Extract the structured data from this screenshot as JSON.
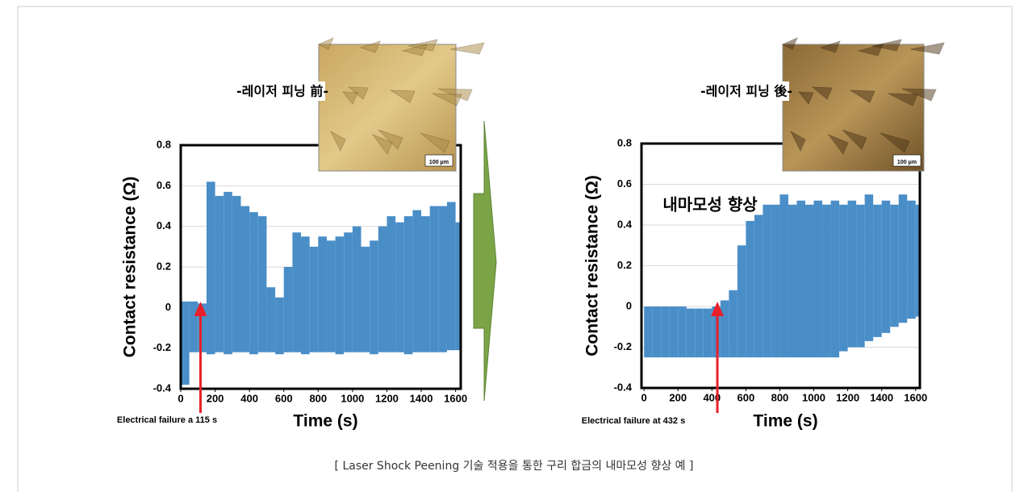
{
  "chart_data": [
    {
      "type": "range-area",
      "color": "#4a8ec8",
      "grid": true,
      "xlabel": "Time (s)",
      "ylabel": "Contact resistance (Ω)",
      "xlim": [
        0,
        1630
      ],
      "ylim": [
        -0.4,
        0.8
      ],
      "xticks": [
        0,
        200,
        400,
        600,
        800,
        1000,
        1200,
        1400,
        1600
      ],
      "yticks": [
        -0.4,
        -0.2,
        0,
        0.2,
        0.4,
        0.6,
        0.8
      ],
      "inset_label": "-레이저 피닝 前-",
      "inset_scale": "100 μm",
      "annotation": "Electrical failure a 115 s",
      "failure_time": 115,
      "x": [
        0,
        50,
        100,
        150,
        200,
        250,
        300,
        350,
        400,
        450,
        500,
        550,
        600,
        650,
        700,
        750,
        800,
        850,
        900,
        950,
        1000,
        1050,
        1100,
        1150,
        1200,
        1250,
        1300,
        1350,
        1400,
        1450,
        1500,
        1550,
        1600
      ],
      "high": [
        0.03,
        0.03,
        0.02,
        0.62,
        0.55,
        0.57,
        0.55,
        0.5,
        0.47,
        0.45,
        0.1,
        0.05,
        0.2,
        0.37,
        0.35,
        0.3,
        0.35,
        0.33,
        0.35,
        0.37,
        0.4,
        0.3,
        0.33,
        0.4,
        0.45,
        0.42,
        0.45,
        0.48,
        0.45,
        0.5,
        0.5,
        0.52,
        0.42
      ],
      "low": [
        -0.38,
        -0.22,
        -0.22,
        -0.23,
        -0.22,
        -0.23,
        -0.22,
        -0.22,
        -0.23,
        -0.22,
        -0.22,
        -0.23,
        -0.22,
        -0.22,
        -0.23,
        -0.22,
        -0.22,
        -0.22,
        -0.23,
        -0.22,
        -0.22,
        -0.22,
        -0.23,
        -0.22,
        -0.22,
        -0.22,
        -0.23,
        -0.22,
        -0.22,
        -0.22,
        -0.22,
        -0.21,
        -0.21
      ]
    },
    {
      "type": "range-area",
      "color": "#4a8ec8",
      "grid": true,
      "xlabel": "Time (s)",
      "ylabel": "Contact resistance (Ω)",
      "xlim": [
        -15,
        1625
      ],
      "ylim": [
        -0.4,
        0.8
      ],
      "xticks": [
        0,
        200,
        400,
        600,
        800,
        1000,
        1200,
        1400,
        1600
      ],
      "yticks": [
        -0.4,
        -0.2,
        0,
        0.2,
        0.4,
        0.6,
        0.8
      ],
      "inset_label": "-레이저 피닝 後-",
      "inset_scale": "100 μm",
      "annotation": "Electrical failure at 432 s",
      "failure_time": 432,
      "highlight": "내마모성 향상",
      "x": [
        0,
        50,
        100,
        150,
        200,
        250,
        300,
        350,
        400,
        450,
        500,
        550,
        600,
        650,
        700,
        750,
        800,
        850,
        900,
        950,
        1000,
        1050,
        1100,
        1150,
        1200,
        1250,
        1300,
        1350,
        1400,
        1450,
        1500,
        1550,
        1600
      ],
      "high": [
        0.0,
        0.0,
        0.0,
        0.0,
        0.0,
        -0.01,
        -0.01,
        -0.01,
        0.0,
        0.03,
        0.08,
        0.3,
        0.42,
        0.45,
        0.5,
        0.5,
        0.55,
        0.5,
        0.52,
        0.5,
        0.52,
        0.5,
        0.52,
        0.5,
        0.52,
        0.5,
        0.55,
        0.5,
        0.52,
        0.5,
        0.55,
        0.52,
        0.5
      ],
      "low": [
        -0.25,
        -0.25,
        -0.25,
        -0.25,
        -0.25,
        -0.25,
        -0.25,
        -0.25,
        -0.25,
        -0.25,
        -0.25,
        -0.25,
        -0.25,
        -0.25,
        -0.25,
        -0.25,
        -0.25,
        -0.25,
        -0.25,
        -0.25,
        -0.25,
        -0.25,
        -0.25,
        -0.22,
        -0.2,
        -0.2,
        -0.17,
        -0.15,
        -0.13,
        -0.1,
        -0.08,
        -0.06,
        -0.05
      ]
    }
  ],
  "caption": "[ Laser Shock Peening 기술 적용을 통한 구리 합금의 내마모성 향상 예 ]"
}
